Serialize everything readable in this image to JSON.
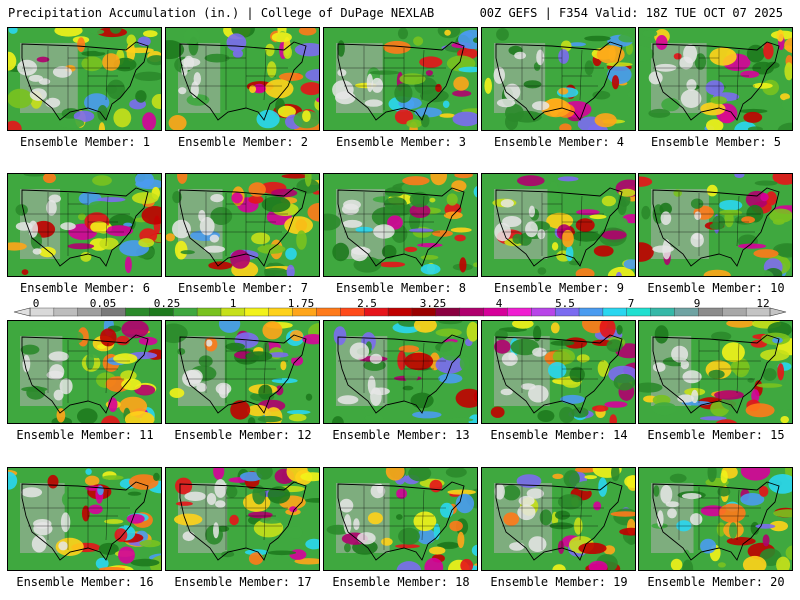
{
  "header": {
    "left": "Precipitation Accumulation (in.) | College of DuPage NEXLAB",
    "right": "00Z GEFS | F354 Valid: 18Z TUE OCT 07 2025"
  },
  "panels": [
    {
      "label": "Ensemble Member: 1"
    },
    {
      "label": "Ensemble Member: 2"
    },
    {
      "label": "Ensemble Member: 3"
    },
    {
      "label": "Ensemble Member: 4"
    },
    {
      "label": "Ensemble Member: 5"
    },
    {
      "label": "Ensemble Member: 6"
    },
    {
      "label": "Ensemble Member: 7"
    },
    {
      "label": "Ensemble Member: 8"
    },
    {
      "label": "Ensemble Member: 9"
    },
    {
      "label": "Ensemble Member: 10"
    },
    {
      "label": "Ensemble Member: 11"
    },
    {
      "label": "Ensemble Member: 12"
    },
    {
      "label": "Ensemble Member: 13"
    },
    {
      "label": "Ensemble Member: 14"
    },
    {
      "label": "Ensemble Member: 15"
    },
    {
      "label": "Ensemble Member: 16"
    },
    {
      "label": "Ensemble Member: 17"
    },
    {
      "label": "Ensemble Member: 18"
    },
    {
      "label": "Ensemble Member: 19"
    },
    {
      "label": "Ensemble Member: 20"
    }
  ],
  "legend": {
    "ticks": [
      "0",
      "0.05",
      "0.25",
      "1",
      "1.75",
      "2.5",
      "3.25",
      "4",
      "5.5",
      "7",
      "9",
      "12"
    ],
    "colors": [
      "#d9d9d9",
      "#bdbdbd",
      "#9e9e9e",
      "#7a7a7a",
      "#2b8a2b",
      "#1e7a1e",
      "#3fa83f",
      "#79c21f",
      "#c6e01a",
      "#f2f21a",
      "#ffd21a",
      "#ffa51a",
      "#ff7a1a",
      "#ff4a1a",
      "#e6141a",
      "#c00000",
      "#9a0000",
      "#8a0040",
      "#b0006e",
      "#d6009a",
      "#f01ed2",
      "#b845e8",
      "#7b6bf0",
      "#4a9bf0",
      "#2ad6f0",
      "#20e0d0",
      "#36b8a8",
      "#6fa3a3",
      "#8c8c8c",
      "#a8a8a8",
      "#c4c4c4"
    ]
  }
}
